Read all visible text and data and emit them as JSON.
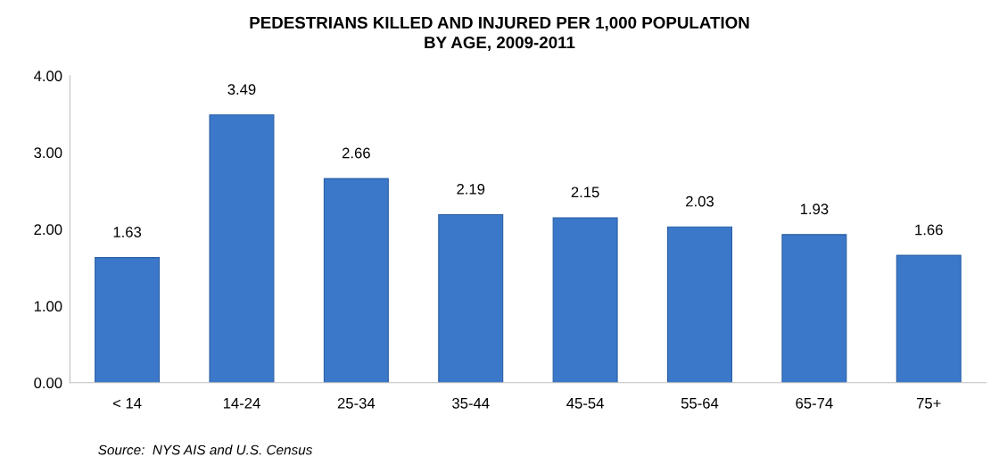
{
  "chart_data": {
    "type": "bar",
    "title": "PEDESTRIANS KILLED AND INJURED PER 1,000 POPULATION\nBY AGE, 2009-2011",
    "categories": [
      "< 14",
      "14-24",
      "25-34",
      "35-44",
      "45-54",
      "55-64",
      "65-74",
      "75+"
    ],
    "values": [
      1.63,
      3.49,
      2.66,
      2.19,
      2.15,
      2.03,
      1.93,
      1.66
    ],
    "color": "#3b78c9",
    "ylim": [
      0,
      4
    ],
    "yticks": [
      {
        "value": 0,
        "label": "0.00"
      },
      {
        "value": 1,
        "label": "1.00"
      },
      {
        "value": 2,
        "label": "2.00"
      },
      {
        "value": 3,
        "label": "3.00"
      },
      {
        "value": 4,
        "label": "4.00"
      }
    ],
    "data_labels": true,
    "grid": false,
    "annotations": [
      "Source:  NYS AIS and U.S. Census"
    ]
  }
}
